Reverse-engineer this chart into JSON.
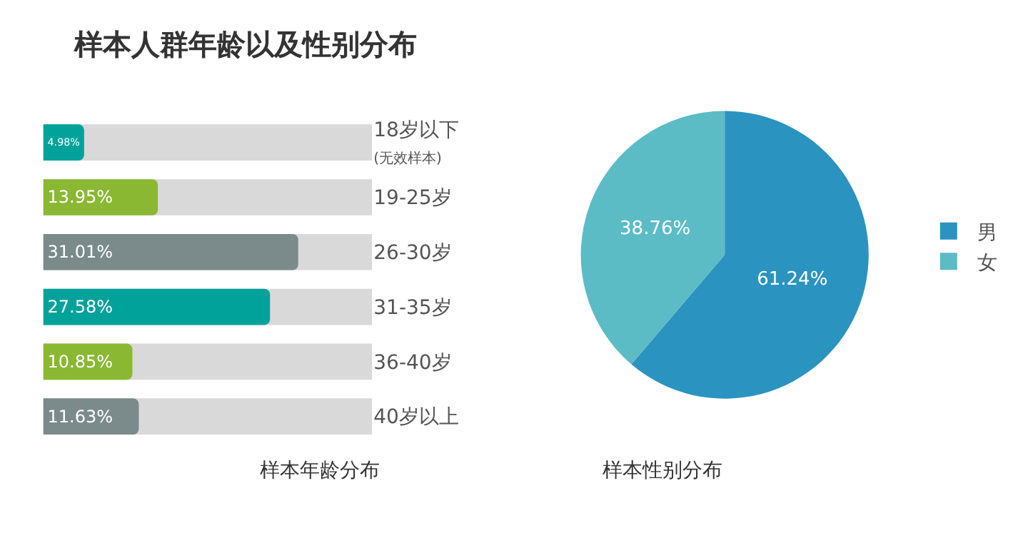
{
  "chart_data": [
    {
      "type": "bar",
      "title": "样本人群年龄以及性别分布",
      "xlabel": "样本年龄分布",
      "orientation": "horizontal",
      "categories": [
        "18岁以下\n(无效样本)",
        "19-25岁",
        "26-30岁",
        "31-35岁",
        "36-40岁",
        "40岁以上"
      ],
      "values": [
        4.98,
        13.95,
        31.01,
        27.58,
        10.85,
        11.63
      ],
      "colors": [
        "#00a29a",
        "#8ab833",
        "#7b8a8b",
        "#00a29a",
        "#8ab833",
        "#7b8a8b"
      ],
      "value_labels": [
        "4.98%",
        "13.95%",
        "31.01%",
        "27.58%",
        "10.85%",
        "11.63%"
      ],
      "xlim": [
        0,
        40
      ],
      "tick_labels": "y",
      "grid": false,
      "legend": false
    },
    {
      "type": "pie",
      "xlabel": "样本性别分布",
      "categories": [
        "男",
        "女"
      ],
      "values": [
        61.24,
        38.76
      ],
      "colors": [
        "#2b93c0",
        "#5cbcc6"
      ],
      "value_labels": [
        "61.24%",
        "38.76%"
      ],
      "legend": "right"
    }
  ]
}
